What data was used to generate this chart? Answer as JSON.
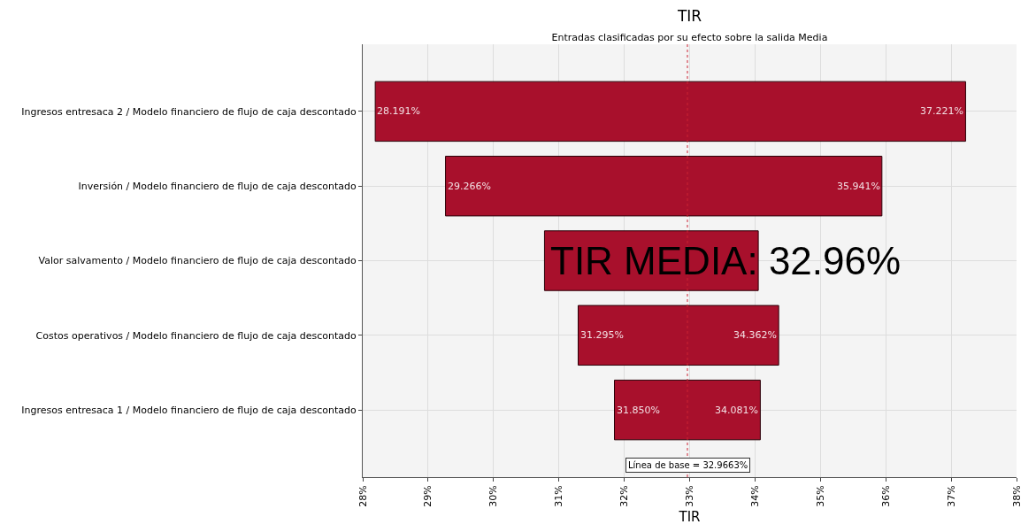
{
  "chart_data": {
    "type": "bar",
    "orientation": "horizontal",
    "title": "TIR",
    "subtitle": "Entradas clasificadas por su efecto sobre la salida Media",
    "xlabel": "TIR",
    "categories": [
      "Ingresos entresaca 2 / Modelo financiero de flujo de caja descontado",
      "Inversión / Modelo financiero de flujo de caja descontado",
      "Valor salvamento / Modelo financiero de flujo de caja descontado",
      "Costos operativos / Modelo financiero de flujo de caja descontado",
      "Ingresos entresaca 1 / Modelo financiero de flujo de caja descontado"
    ],
    "base": [
      28.191,
      29.266,
      30.78,
      31.295,
      31.85
    ],
    "values": [
      9.03,
      6.675,
      3.27,
      3.067,
      2.231
    ],
    "color": "#a8102c",
    "xlim": [
      28,
      38
    ],
    "xticks": [
      {
        "value": 28,
        "label": "28%"
      },
      {
        "value": 29,
        "label": "29%"
      },
      {
        "value": 30,
        "label": "30%"
      },
      {
        "value": 31,
        "label": "31%"
      },
      {
        "value": 32,
        "label": "32%"
      },
      {
        "value": 33,
        "label": "33%"
      },
      {
        "value": 34,
        "label": "34%"
      },
      {
        "value": 35,
        "label": "35%"
      },
      {
        "value": 36,
        "label": "36%"
      },
      {
        "value": 37,
        "label": "37%"
      },
      {
        "value": 38,
        "label": "38%"
      }
    ],
    "grid": true,
    "ref_lines": [
      {
        "axis": "x",
        "value": 32.9663,
        "label": "Línea de base = 32.9663%",
        "color": "#cc2233",
        "line_style": "dotted"
      }
    ],
    "annotations": [
      {
        "text": "28.191%",
        "x": 28.191,
        "y": "Ingresos entresaca 2 / Modelo financiero de flujo de caja descontado"
      },
      {
        "text": "37.221%",
        "x": 37.221,
        "y": "Ingresos entresaca 2 / Modelo financiero de flujo de caja descontado"
      },
      {
        "text": "29.266%",
        "x": 29.266,
        "y": "Inversión / Modelo financiero de flujo de caja descontado"
      },
      {
        "text": "35.941%",
        "x": 35.941,
        "y": "Inversión / Modelo financiero de flujo de caja descontado"
      },
      {
        "text": "31.295%",
        "x": 31.295,
        "y": "Costos operativos / Modelo financiero de flujo de caja descontado"
      },
      {
        "text": "34.362%",
        "x": 34.362,
        "y": "Costos operativos / Modelo financiero de flujo de caja descontado"
      },
      {
        "text": "31.850%",
        "x": 31.85,
        "y": "Ingresos entresaca 1 / Modelo financiero de flujo de caja descontado"
      },
      {
        "text": "34.081%",
        "x": 34.081,
        "y": "Ingresos entresaca 1 / Modelo financiero de flujo de caja descontado"
      },
      "TIR MEDIA: 32.96%"
    ]
  }
}
